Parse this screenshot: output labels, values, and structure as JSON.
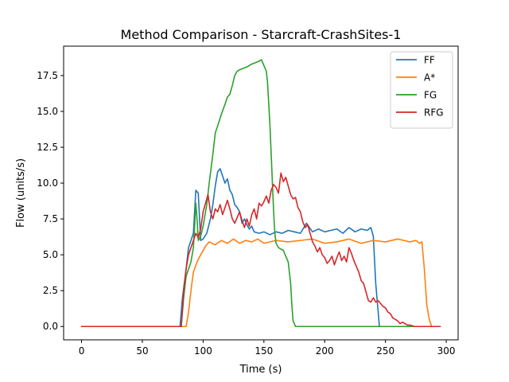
{
  "chart_data": {
    "type": "line",
    "title": "Method Comparison - Starcraft-CrashSites-1",
    "xlabel": "Time (s)",
    "ylabel": "Flow (units/s)",
    "xlim": [
      -14.75,
      309.75
    ],
    "ylim": [
      -0.93,
      19.55
    ],
    "xticks": [
      0,
      50,
      100,
      150,
      200,
      250,
      300
    ],
    "xtick_labels": [
      "0",
      "50",
      "100",
      "150",
      "200",
      "250",
      "300"
    ],
    "yticks": [
      0.0,
      2.5,
      5.0,
      7.5,
      10.0,
      12.5,
      15.0,
      17.5
    ],
    "ytick_labels": [
      "0.0",
      "2.5",
      "5.0",
      "7.5",
      "10.0",
      "12.5",
      "15.0",
      "17.5"
    ],
    "grid": false,
    "legend": "top-right",
    "series": [
      {
        "name": "FF",
        "color": "#1f77b4",
        "points": [
          [
            0,
            0
          ],
          [
            81,
            0
          ],
          [
            83,
            2
          ],
          [
            86,
            4
          ],
          [
            88,
            5.5
          ],
          [
            90,
            6
          ],
          [
            92,
            6.5
          ],
          [
            94,
            9.5
          ],
          [
            96,
            9.3
          ],
          [
            98,
            6
          ],
          [
            100,
            6.1
          ],
          [
            103,
            6.5
          ],
          [
            106,
            7.5
          ],
          [
            108,
            8.5
          ],
          [
            110,
            9.8
          ],
          [
            112,
            10.8
          ],
          [
            114,
            11
          ],
          [
            116,
            10.5
          ],
          [
            118,
            10
          ],
          [
            120,
            10.3
          ],
          [
            122,
            9.5
          ],
          [
            124,
            9.2
          ],
          [
            126,
            8.5
          ],
          [
            128,
            8.3
          ],
          [
            130,
            8
          ],
          [
            132,
            7.2
          ],
          [
            134,
            7.5
          ],
          [
            136,
            7.1
          ],
          [
            138,
            6.8
          ],
          [
            140,
            7
          ],
          [
            142,
            6.6
          ],
          [
            146,
            6.5
          ],
          [
            150,
            6.6
          ],
          [
            155,
            6.4
          ],
          [
            160,
            6.6
          ],
          [
            165,
            6.5
          ],
          [
            170,
            6.7
          ],
          [
            175,
            6.6
          ],
          [
            180,
            6.5
          ],
          [
            185,
            7.2
          ],
          [
            190,
            6.6
          ],
          [
            195,
            6.8
          ],
          [
            200,
            6.6
          ],
          [
            205,
            6.7
          ],
          [
            210,
            6.8
          ],
          [
            215,
            6.5
          ],
          [
            220,
            6.9
          ],
          [
            225,
            6.6
          ],
          [
            230,
            6.8
          ],
          [
            235,
            6.7
          ],
          [
            238,
            6.9
          ],
          [
            240,
            6.3
          ],
          [
            242,
            3
          ],
          [
            244,
            1
          ],
          [
            245,
            0
          ],
          [
            295,
            0
          ]
        ]
      },
      {
        "name": "A*",
        "color": "#ff7f0e",
        "points": [
          [
            0,
            0
          ],
          [
            86,
            0
          ],
          [
            88,
            1
          ],
          [
            90,
            2.5
          ],
          [
            92,
            3.8
          ],
          [
            95,
            4.5
          ],
          [
            98,
            5
          ],
          [
            102,
            5.6
          ],
          [
            105,
            5.9
          ],
          [
            110,
            5.7
          ],
          [
            115,
            6
          ],
          [
            120,
            5.8
          ],
          [
            125,
            6.1
          ],
          [
            130,
            5.8
          ],
          [
            135,
            6
          ],
          [
            140,
            5.9
          ],
          [
            145,
            6.1
          ],
          [
            150,
            5.8
          ],
          [
            160,
            6
          ],
          [
            170,
            5.9
          ],
          [
            180,
            6
          ],
          [
            190,
            6.1
          ],
          [
            200,
            5.8
          ],
          [
            210,
            5.9
          ],
          [
            220,
            6.1
          ],
          [
            230,
            5.8
          ],
          [
            240,
            6
          ],
          [
            250,
            5.9
          ],
          [
            260,
            6.1
          ],
          [
            270,
            5.9
          ],
          [
            275,
            6
          ],
          [
            278,
            5.8
          ],
          [
            280,
            5.9
          ],
          [
            282,
            4
          ],
          [
            284,
            1.5
          ],
          [
            286,
            0.5
          ],
          [
            288,
            0
          ],
          [
            295,
            0
          ]
        ]
      },
      {
        "name": "FG",
        "color": "#2ca02c",
        "points": [
          [
            0,
            0
          ],
          [
            82,
            0
          ],
          [
            84,
            2
          ],
          [
            86,
            3.5
          ],
          [
            88,
            4
          ],
          [
            90,
            4.5
          ],
          [
            92,
            5.5
          ],
          [
            93,
            7
          ],
          [
            94,
            8.6
          ],
          [
            95,
            7.5
          ],
          [
            96,
            6
          ],
          [
            98,
            6.3
          ],
          [
            100,
            7
          ],
          [
            103,
            8.5
          ],
          [
            105,
            10
          ],
          [
            108,
            12
          ],
          [
            110,
            13.5
          ],
          [
            112,
            14
          ],
          [
            115,
            14.8
          ],
          [
            118,
            15.5
          ],
          [
            120,
            16
          ],
          [
            122,
            16.2
          ],
          [
            124,
            16.8
          ],
          [
            126,
            17.5
          ],
          [
            128,
            17.8
          ],
          [
            130,
            17.9
          ],
          [
            133,
            18
          ],
          [
            136,
            18.1
          ],
          [
            138,
            18.2
          ],
          [
            140,
            18.3
          ],
          [
            143,
            18.4
          ],
          [
            146,
            18.5
          ],
          [
            148,
            18.6
          ],
          [
            150,
            18.2
          ],
          [
            152,
            17.8
          ],
          [
            153,
            17
          ],
          [
            154,
            15.5
          ],
          [
            155,
            14
          ],
          [
            156,
            12
          ],
          [
            157,
            10
          ],
          [
            158,
            8
          ],
          [
            159,
            6.5
          ],
          [
            160,
            5.8
          ],
          [
            162,
            5.5
          ],
          [
            166,
            5.3
          ],
          [
            170,
            4.5
          ],
          [
            172,
            3
          ],
          [
            173,
            1.5
          ],
          [
            174,
            0.4
          ],
          [
            176,
            0
          ],
          [
            295,
            0
          ]
        ]
      },
      {
        "name": "RFG",
        "color": "#d62728",
        "points": [
          [
            0,
            0
          ],
          [
            82,
            0
          ],
          [
            84,
            2.5
          ],
          [
            86,
            4
          ],
          [
            88,
            5
          ],
          [
            90,
            5.5
          ],
          [
            92,
            6
          ],
          [
            94,
            6.5
          ],
          [
            96,
            6.2
          ],
          [
            98,
            6.8
          ],
          [
            100,
            8
          ],
          [
            102,
            8.6
          ],
          [
            104,
            9.2
          ],
          [
            106,
            8
          ],
          [
            108,
            7.5
          ],
          [
            110,
            8.2
          ],
          [
            112,
            8
          ],
          [
            114,
            8.5
          ],
          [
            116,
            7.8
          ],
          [
            118,
            8.3
          ],
          [
            120,
            8.8
          ],
          [
            122,
            8.2
          ],
          [
            124,
            7.5
          ],
          [
            126,
            7.2
          ],
          [
            128,
            7.6
          ],
          [
            130,
            8
          ],
          [
            132,
            7.4
          ],
          [
            134,
            6.9
          ],
          [
            136,
            7.5
          ],
          [
            138,
            7
          ],
          [
            140,
            7.8
          ],
          [
            142,
            8.2
          ],
          [
            144,
            7.5
          ],
          [
            146,
            8.6
          ],
          [
            148,
            8.4
          ],
          [
            150,
            8.7
          ],
          [
            152,
            9.1
          ],
          [
            154,
            8.6
          ],
          [
            156,
            9.5
          ],
          [
            158,
            9.9
          ],
          [
            160,
            9.7
          ],
          [
            162,
            9.3
          ],
          [
            164,
            10.7
          ],
          [
            166,
            10.1
          ],
          [
            168,
            10.4
          ],
          [
            170,
            9.8
          ],
          [
            172,
            9.2
          ],
          [
            174,
            8.9
          ],
          [
            176,
            9.0
          ],
          [
            178,
            8.3
          ],
          [
            180,
            8.0
          ],
          [
            182,
            7.3
          ],
          [
            184,
            6.9
          ],
          [
            186,
            7.1
          ],
          [
            188,
            6.5
          ],
          [
            190,
            5.9
          ],
          [
            192,
            5.6
          ],
          [
            194,
            5.2
          ],
          [
            196,
            5.5
          ],
          [
            198,
            5.0
          ],
          [
            200,
            4.8
          ],
          [
            202,
            4.4
          ],
          [
            204,
            4.6
          ],
          [
            206,
            4.9
          ],
          [
            208,
            4.3
          ],
          [
            210,
            4.8
          ],
          [
            212,
            5.2
          ],
          [
            214,
            4.6
          ],
          [
            216,
            4.9
          ],
          [
            218,
            4.5
          ],
          [
            220,
            5.5
          ],
          [
            222,
            5.1
          ],
          [
            224,
            4.6
          ],
          [
            226,
            4.2
          ],
          [
            228,
            3.8
          ],
          [
            230,
            3.2
          ],
          [
            232,
            3.0
          ],
          [
            234,
            2.4
          ],
          [
            236,
            1.8
          ],
          [
            238,
            1.7
          ],
          [
            240,
            2.0
          ],
          [
            242,
            1.7
          ],
          [
            244,
            1.8
          ],
          [
            246,
            1.6
          ],
          [
            248,
            1.4
          ],
          [
            250,
            1.3
          ],
          [
            252,
            1.0
          ],
          [
            254,
            0.9
          ],
          [
            256,
            0.6
          ],
          [
            258,
            0.5
          ],
          [
            260,
            0.4
          ],
          [
            262,
            0.2
          ],
          [
            264,
            0.3
          ],
          [
            266,
            0.2
          ],
          [
            268,
            0.1
          ],
          [
            270,
            0.1
          ],
          [
            272,
            0.05
          ],
          [
            274,
            0
          ],
          [
            295,
            0
          ]
        ]
      }
    ]
  }
}
